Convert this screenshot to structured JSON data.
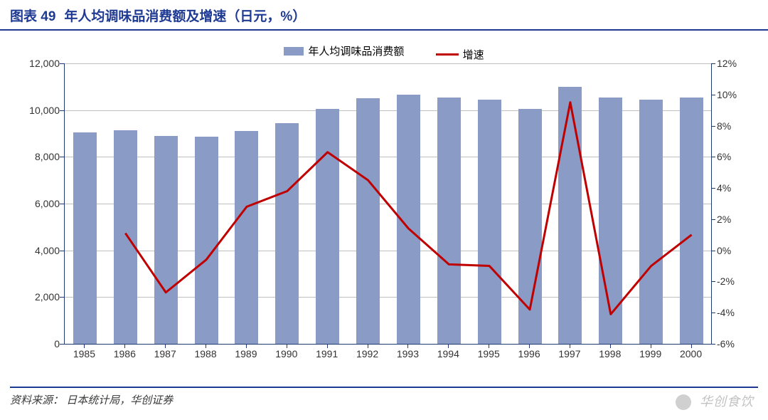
{
  "title": {
    "prefix": "图表 49",
    "text": "年人均调味品消费额及增速（日元，%）",
    "color": "#1f3a93",
    "fontsize": 19,
    "underline_color": "#1f3a93"
  },
  "source": {
    "label": "资料来源：",
    "text": "日本统计局，华创证券",
    "color": "#3a3a3a",
    "underline_color": "#1f3a93"
  },
  "watermark": "华创食饮",
  "chart": {
    "type": "bar+line",
    "categories": [
      "1985",
      "1986",
      "1987",
      "1988",
      "1989",
      "1990",
      "1991",
      "1992",
      "1993",
      "1994",
      "1995",
      "1996",
      "1997",
      "1998",
      "1999",
      "2000"
    ],
    "bars": {
      "label": "年人均调味品消费额",
      "values": [
        9050,
        9150,
        8900,
        8850,
        9100,
        9450,
        10050,
        10500,
        10650,
        10550,
        10450,
        10050,
        11000,
        10550,
        10450,
        10550
      ],
      "color": "#8a9bc6",
      "bar_width": 0.58
    },
    "line": {
      "label": "增速",
      "values": [
        null,
        1.1,
        -2.7,
        -0.6,
        2.8,
        3.8,
        6.3,
        4.5,
        1.4,
        -0.9,
        -1.0,
        -3.8,
        9.5,
        -4.1,
        -1.0,
        1.0
      ],
      "color": "#c00000",
      "line_width": 3
    },
    "y_left": {
      "min": 0,
      "max": 12000,
      "ticks": [
        0,
        2000,
        4000,
        6000,
        8000,
        10000,
        12000
      ],
      "tick_labels": [
        "0",
        "2,000",
        "4,000",
        "6,000",
        "8,000",
        "10,000",
        "12,000"
      ],
      "fontsize": 14
    },
    "y_right": {
      "min": -6,
      "max": 12,
      "ticks": [
        -6,
        -4,
        -2,
        0,
        2,
        4,
        6,
        8,
        10,
        12
      ],
      "tick_labels": [
        "-6%",
        "-4%",
        "-2%",
        "0%",
        "2%",
        "4%",
        "6%",
        "8%",
        "10%",
        "12%"
      ],
      "fontsize": 14
    },
    "grid_color": "#bfbfbf",
    "axis_color": "#1f3a72",
    "background_color": "#ffffff",
    "label_color": "#333333"
  }
}
